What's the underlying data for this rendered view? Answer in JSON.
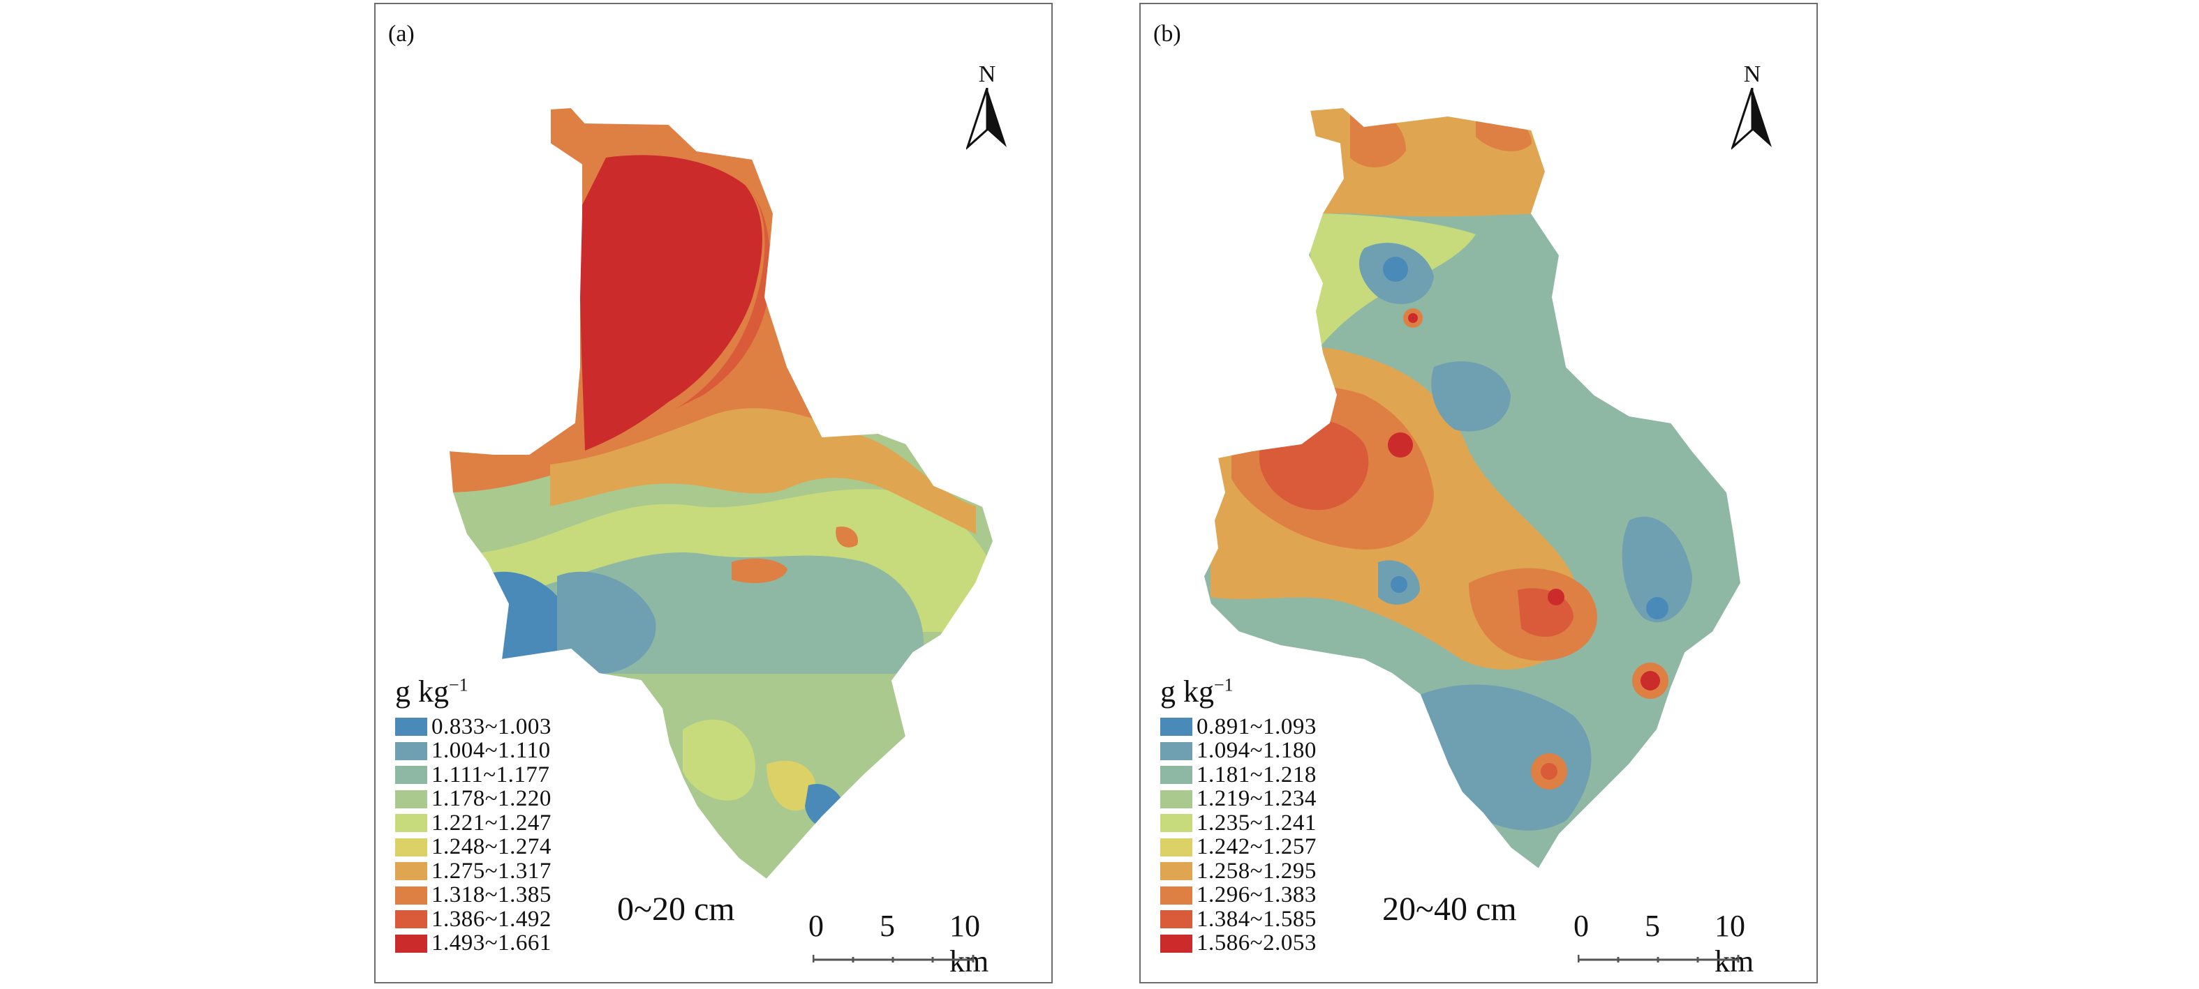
{
  "panels": [
    {
      "label": "(a)",
      "north": "N",
      "unit_base": "g kg",
      "unit_exp": "−1",
      "depth": "0~20 cm",
      "scale": {
        "t0": "0",
        "t5": "5",
        "t10": "10 km"
      },
      "legend": [
        {
          "range": "0.833~1.003",
          "color": "#4a8ab8"
        },
        {
          "range": "1.004~1.110",
          "color": "#6ea0b2"
        },
        {
          "range": "1.111~1.177",
          "color": "#8fb8a4"
        },
        {
          "range": "1.178~1.220",
          "color": "#a9c98f"
        },
        {
          "range": "1.221~1.247",
          "color": "#c7da7c"
        },
        {
          "range": "1.248~1.274",
          "color": "#dcd166"
        },
        {
          "range": "1.275~1.317",
          "color": "#e0a550"
        },
        {
          "range": "1.318~1.385",
          "color": "#de7f43"
        },
        {
          "range": "1.386~1.492",
          "color": "#d95b3a"
        },
        {
          "range": "1.493~1.661",
          "color": "#cc2b2c"
        }
      ]
    },
    {
      "label": "(b)",
      "north": "N",
      "unit_base": "g kg",
      "unit_exp": "−1",
      "depth": "20~40 cm",
      "scale": {
        "t0": "0",
        "t5": "5",
        "t10": "10 km"
      },
      "legend": [
        {
          "range": "0.891~1.093",
          "color": "#4a8ab8"
        },
        {
          "range": "1.094~1.180",
          "color": "#6ea0b2"
        },
        {
          "range": "1.181~1.218",
          "color": "#8fb8a4"
        },
        {
          "range": "1.219~1.234",
          "color": "#a9c98f"
        },
        {
          "range": "1.235~1.241",
          "color": "#c7da7c"
        },
        {
          "range": "1.242~1.257",
          "color": "#dcd166"
        },
        {
          "range": "1.258~1.295",
          "color": "#e0a550"
        },
        {
          "range": "1.296~1.383",
          "color": "#de7f43"
        },
        {
          "range": "1.384~1.585",
          "color": "#d95b3a"
        },
        {
          "range": "1.586~2.053",
          "color": "#cc2b2c"
        }
      ]
    }
  ]
}
